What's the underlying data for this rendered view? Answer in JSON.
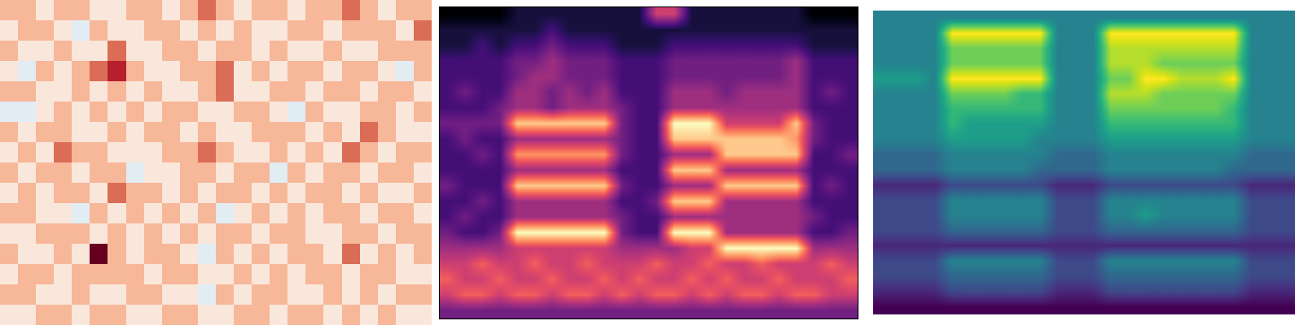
{
  "chart_data": [
    {
      "type": "heatmap",
      "tick_labels": false,
      "color_range": [
        0,
        9
      ],
      "cells": [
        [
          6,
          6,
          5,
          6,
          6,
          5,
          5,
          6,
          6,
          5,
          6,
          7,
          6,
          5,
          6,
          6,
          5,
          6,
          6,
          7,
          6,
          5,
          6,
          6
        ],
        [
          5,
          6,
          6,
          5,
          4,
          6,
          5,
          5,
          6,
          6,
          5,
          6,
          5,
          6,
          5,
          5,
          6,
          6,
          5,
          6,
          6,
          6,
          5,
          7
        ],
        [
          6,
          5,
          5,
          6,
          5,
          5,
          7,
          5,
          5,
          6,
          6,
          5,
          6,
          6,
          5,
          6,
          5,
          5,
          6,
          5,
          5,
          6,
          6,
          6
        ],
        [
          5,
          4,
          6,
          5,
          6,
          7,
          8,
          6,
          5,
          5,
          6,
          6,
          7,
          5,
          6,
          5,
          6,
          6,
          5,
          6,
          6,
          5,
          4,
          6
        ],
        [
          6,
          6,
          5,
          5,
          6,
          5,
          6,
          5,
          6,
          5,
          5,
          6,
          7,
          5,
          5,
          6,
          6,
          5,
          6,
          6,
          5,
          6,
          6,
          5
        ],
        [
          4,
          4,
          5,
          6,
          5,
          6,
          5,
          6,
          5,
          6,
          6,
          5,
          5,
          6,
          6,
          5,
          4,
          6,
          5,
          5,
          6,
          6,
          5,
          6
        ],
        [
          6,
          5,
          6,
          6,
          5,
          5,
          6,
          5,
          6,
          6,
          5,
          6,
          5,
          5,
          6,
          6,
          6,
          5,
          6,
          5,
          7,
          6,
          5,
          5
        ],
        [
          5,
          6,
          5,
          7,
          6,
          6,
          5,
          5,
          5,
          6,
          6,
          7,
          6,
          5,
          5,
          6,
          5,
          6,
          5,
          7,
          6,
          5,
          6,
          6
        ],
        [
          6,
          5,
          6,
          6,
          5,
          6,
          6,
          4,
          5,
          5,
          6,
          6,
          5,
          6,
          6,
          4,
          6,
          5,
          6,
          6,
          5,
          6,
          6,
          5
        ],
        [
          5,
          6,
          5,
          6,
          6,
          5,
          7,
          6,
          6,
          5,
          6,
          5,
          6,
          6,
          5,
          6,
          5,
          6,
          6,
          5,
          6,
          5,
          5,
          6
        ],
        [
          6,
          6,
          5,
          5,
          4,
          6,
          5,
          6,
          5,
          6,
          5,
          6,
          4,
          5,
          6,
          5,
          6,
          5,
          6,
          6,
          5,
          6,
          6,
          5
        ],
        [
          5,
          5,
          6,
          6,
          6,
          5,
          6,
          5,
          6,
          5,
          6,
          5,
          6,
          6,
          5,
          6,
          6,
          5,
          5,
          6,
          6,
          5,
          6,
          6
        ],
        [
          6,
          5,
          5,
          6,
          5,
          9,
          6,
          5,
          6,
          6,
          5,
          4,
          6,
          5,
          6,
          5,
          6,
          6,
          5,
          7,
          5,
          6,
          5,
          6
        ],
        [
          5,
          6,
          6,
          5,
          6,
          6,
          6,
          6,
          5,
          6,
          6,
          5,
          5,
          6,
          5,
          6,
          5,
          6,
          6,
          5,
          6,
          6,
          5,
          5
        ],
        [
          6,
          6,
          5,
          5,
          6,
          5,
          5,
          6,
          6,
          5,
          5,
          4,
          6,
          5,
          6,
          6,
          5,
          5,
          6,
          5,
          6,
          5,
          6,
          6
        ],
        [
          5,
          5,
          6,
          6,
          5,
          6,
          6,
          5,
          5,
          6,
          6,
          5,
          5,
          6,
          6,
          5,
          6,
          6,
          5,
          6,
          5,
          6,
          5,
          5
        ]
      ]
    },
    {
      "type": "heatmap",
      "tick_labels": false,
      "color_range": [
        0,
        9
      ],
      "cells": [
        [
          0,
          0,
          0,
          0,
          1,
          1,
          1,
          1,
          1,
          1,
          1,
          1,
          5,
          5,
          1,
          1,
          1,
          1,
          1,
          1,
          1,
          0,
          0,
          0
        ],
        [
          1,
          1,
          1,
          1,
          1,
          1,
          2,
          1,
          1,
          1,
          1,
          1,
          1,
          1,
          1,
          1,
          1,
          1,
          1,
          1,
          1,
          1,
          1,
          1
        ],
        [
          1,
          1,
          2,
          1,
          2,
          2,
          3,
          2,
          2,
          2,
          1,
          1,
          1,
          2,
          2,
          2,
          2,
          2,
          2,
          2,
          2,
          1,
          1,
          1
        ],
        [
          2,
          2,
          2,
          2,
          3,
          3,
          4,
          3,
          3,
          3,
          2,
          2,
          2,
          3,
          3,
          3,
          3,
          3,
          3,
          3,
          4,
          2,
          2,
          2
        ],
        [
          2,
          2,
          2,
          2,
          3,
          4,
          4,
          3,
          3,
          3,
          2,
          2,
          2,
          3,
          3,
          3,
          3,
          3,
          3,
          3,
          4,
          2,
          2,
          2
        ],
        [
          2,
          3,
          2,
          2,
          4,
          4,
          3,
          4,
          3,
          4,
          2,
          2,
          2,
          4,
          4,
          4,
          3,
          4,
          4,
          4,
          4,
          2,
          3,
          2
        ],
        [
          2,
          2,
          2,
          3,
          4,
          4,
          3,
          4,
          4,
          4,
          3,
          2,
          2,
          4,
          4,
          4,
          4,
          4,
          4,
          4,
          4,
          2,
          2,
          2
        ],
        [
          3,
          3,
          3,
          3,
          8,
          8,
          8,
          8,
          8,
          8,
          3,
          2,
          2,
          9,
          9,
          9,
          5,
          5,
          5,
          5,
          8,
          3,
          2,
          2
        ],
        [
          2,
          3,
          2,
          2,
          4,
          4,
          4,
          4,
          4,
          4,
          3,
          2,
          2,
          8,
          8,
          8,
          8,
          8,
          8,
          8,
          7,
          3,
          2,
          2
        ],
        [
          2,
          2,
          3,
          2,
          7,
          7,
          7,
          7,
          7,
          7,
          3,
          2,
          2,
          4,
          4,
          4,
          8,
          8,
          8,
          8,
          8,
          2,
          2,
          3
        ],
        [
          2,
          2,
          2,
          2,
          4,
          4,
          4,
          4,
          4,
          4,
          2,
          2,
          2,
          8,
          8,
          8,
          4,
          4,
          4,
          4,
          4,
          2,
          2,
          2
        ],
        [
          3,
          2,
          2,
          2,
          8,
          8,
          8,
          8,
          8,
          8,
          3,
          2,
          2,
          4,
          4,
          4,
          8,
          8,
          8,
          8,
          8,
          2,
          3,
          2
        ],
        [
          2,
          2,
          3,
          2,
          4,
          4,
          4,
          4,
          4,
          4,
          2,
          2,
          3,
          8,
          8,
          8,
          4,
          4,
          4,
          4,
          4,
          2,
          2,
          2
        ],
        [
          2,
          3,
          2,
          2,
          4,
          4,
          4,
          4,
          4,
          4,
          3,
          2,
          2,
          4,
          4,
          4,
          4,
          4,
          4,
          4,
          4,
          3,
          2,
          2
        ],
        [
          3,
          2,
          2,
          3,
          9,
          9,
          9,
          9,
          9,
          9,
          3,
          2,
          2,
          9,
          9,
          9,
          4,
          4,
          4,
          4,
          4,
          2,
          2,
          3
        ],
        [
          4,
          4,
          4,
          4,
          5,
          5,
          5,
          5,
          5,
          5,
          4,
          4,
          4,
          4,
          5,
          5,
          9,
          9,
          9,
          9,
          9,
          4,
          4,
          4
        ],
        [
          5,
          5,
          6,
          5,
          5,
          6,
          5,
          5,
          6,
          5,
          5,
          5,
          6,
          5,
          5,
          6,
          5,
          5,
          6,
          5,
          5,
          5,
          6,
          5
        ],
        [
          6,
          5,
          5,
          6,
          5,
          5,
          6,
          5,
          5,
          6,
          5,
          6,
          5,
          5,
          6,
          5,
          6,
          5,
          5,
          6,
          5,
          5,
          5,
          6
        ],
        [
          5,
          6,
          6,
          5,
          6,
          6,
          5,
          6,
          6,
          5,
          6,
          5,
          6,
          6,
          5,
          6,
          5,
          6,
          6,
          5,
          6,
          6,
          5,
          5
        ],
        [
          3,
          3,
          3,
          3,
          3,
          3,
          3,
          3,
          3,
          3,
          3,
          3,
          3,
          3,
          3,
          3,
          3,
          3,
          3,
          3,
          3,
          3,
          3,
          3
        ]
      ]
    },
    {
      "type": "heatmap",
      "tick_labels": false,
      "color_range": [
        0,
        9
      ],
      "cells": [
        [
          4,
          4,
          4,
          4,
          4,
          4,
          4,
          4,
          4,
          4,
          4,
          4,
          4,
          4,
          4,
          4,
          4,
          4,
          4,
          4,
          4,
          4,
          4,
          4
        ],
        [
          4,
          4,
          4,
          4,
          9,
          9,
          9,
          9,
          9,
          9,
          4,
          4,
          4,
          9,
          9,
          9,
          9,
          9,
          9,
          9,
          9,
          4,
          4,
          4
        ],
        [
          4,
          4,
          4,
          4,
          7,
          7,
          7,
          7,
          7,
          7,
          4,
          4,
          4,
          8,
          8,
          8,
          8,
          8,
          8,
          8,
          8,
          4,
          4,
          4
        ],
        [
          4,
          4,
          4,
          4,
          7,
          7,
          7,
          7,
          7,
          7,
          4,
          4,
          4,
          8,
          8,
          8,
          7,
          7,
          7,
          7,
          7,
          4,
          4,
          4
        ],
        [
          5,
          5,
          5,
          4,
          9,
          9,
          9,
          9,
          9,
          9,
          4,
          4,
          4,
          7,
          7,
          9,
          9,
          8,
          8,
          8,
          9,
          4,
          4,
          4
        ],
        [
          4,
          4,
          4,
          4,
          7,
          7,
          7,
          7,
          6,
          6,
          4,
          4,
          4,
          8,
          8,
          8,
          7,
          7,
          7,
          7,
          7,
          4,
          4,
          4
        ],
        [
          4,
          4,
          4,
          4,
          6,
          6,
          6,
          6,
          6,
          6,
          4,
          4,
          4,
          7,
          7,
          7,
          7,
          7,
          7,
          7,
          6,
          4,
          4,
          4
        ],
        [
          4,
          4,
          4,
          4,
          6,
          5,
          5,
          5,
          5,
          5,
          4,
          4,
          4,
          6,
          6,
          6,
          6,
          6,
          6,
          6,
          6,
          4,
          4,
          4
        ],
        [
          4,
          4,
          4,
          4,
          5,
          5,
          5,
          5,
          5,
          4,
          4,
          4,
          4,
          5,
          5,
          5,
          5,
          5,
          5,
          5,
          5,
          4,
          4,
          4
        ],
        [
          3,
          3,
          3,
          3,
          4,
          4,
          4,
          4,
          4,
          4,
          3,
          3,
          3,
          4,
          4,
          4,
          4,
          4,
          4,
          4,
          4,
          3,
          3,
          3
        ],
        [
          3,
          3,
          3,
          3,
          4,
          4,
          4,
          4,
          4,
          3,
          3,
          3,
          3,
          4,
          4,
          4,
          4,
          4,
          4,
          4,
          3,
          3,
          3,
          3
        ],
        [
          1,
          1,
          1,
          1,
          2,
          2,
          2,
          2,
          2,
          2,
          1,
          1,
          1,
          2,
          2,
          2,
          2,
          2,
          2,
          2,
          2,
          1,
          1,
          1
        ],
        [
          2,
          2,
          2,
          2,
          4,
          4,
          4,
          4,
          4,
          4,
          2,
          2,
          2,
          4,
          4,
          4,
          4,
          4,
          4,
          4,
          4,
          2,
          2,
          2
        ],
        [
          2,
          2,
          2,
          2,
          4,
          4,
          4,
          4,
          4,
          4,
          2,
          2,
          2,
          4,
          4,
          5,
          4,
          4,
          4,
          4,
          4,
          2,
          2,
          2
        ],
        [
          2,
          2,
          2,
          2,
          3,
          3,
          3,
          3,
          3,
          3,
          2,
          2,
          2,
          3,
          3,
          3,
          3,
          3,
          3,
          3,
          3,
          2,
          2,
          2
        ],
        [
          1,
          1,
          1,
          1,
          1,
          1,
          1,
          1,
          1,
          1,
          1,
          1,
          1,
          1,
          1,
          1,
          1,
          1,
          1,
          1,
          1,
          1,
          1,
          1
        ],
        [
          2,
          2,
          2,
          2,
          4,
          4,
          4,
          4,
          4,
          4,
          2,
          2,
          2,
          4,
          4,
          4,
          4,
          4,
          4,
          4,
          4,
          2,
          2,
          2
        ],
        [
          2,
          2,
          2,
          2,
          3,
          3,
          3,
          3,
          3,
          3,
          2,
          2,
          2,
          3,
          3,
          3,
          3,
          3,
          3,
          3,
          3,
          2,
          2,
          2
        ],
        [
          1,
          1,
          1,
          1,
          2,
          2,
          2,
          2,
          2,
          2,
          1,
          1,
          1,
          2,
          2,
          2,
          2,
          2,
          2,
          2,
          2,
          1,
          1,
          1
        ],
        [
          0,
          0,
          0,
          0,
          0,
          0,
          0,
          0,
          0,
          0,
          0,
          0,
          0,
          0,
          0,
          0,
          0,
          0,
          0,
          0,
          0,
          0,
          0,
          0
        ]
      ]
    }
  ]
}
